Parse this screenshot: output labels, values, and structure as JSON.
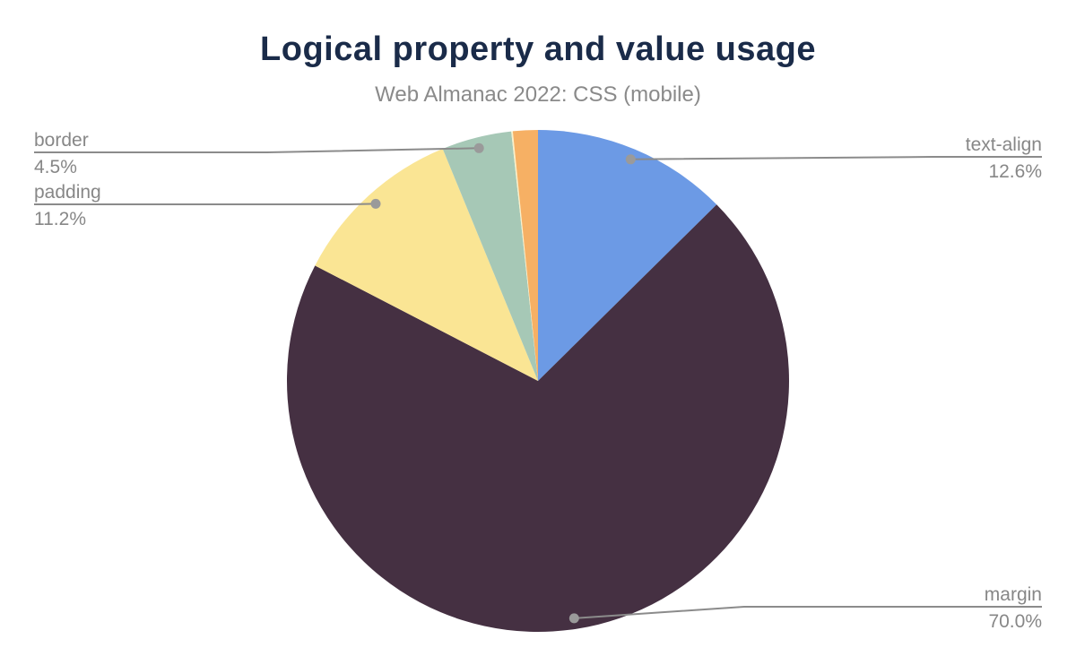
{
  "chart_data": {
    "type": "pie",
    "title": "Logical property and value usage",
    "subtitle": "Web Almanac 2022: CSS (mobile)",
    "unit": "%",
    "legend": "none",
    "callouts": true,
    "start_angle": "12 o'clock, clockwise",
    "slices": [
      {
        "label": "text-align",
        "value": 12.6,
        "color": "#6c9ae5",
        "labeled": true
      },
      {
        "label": "margin",
        "value": 70.0,
        "color": "#453042",
        "labeled": true
      },
      {
        "label": "padding",
        "value": 11.2,
        "color": "#fae594",
        "labeled": true
      },
      {
        "label": "border",
        "value": 4.5,
        "color": "#a6c8b6",
        "labeled": true
      },
      {
        "label": "",
        "value": 0.1,
        "color": "#faf0c8",
        "labeled": false
      },
      {
        "label": "",
        "value": 1.6,
        "color": "#f6b064",
        "labeled": false
      }
    ],
    "callout_values": {
      "text-align": "12.6%",
      "margin": "70.0%",
      "padding": "11.2%",
      "border": "4.5%"
    },
    "style": {
      "background": "#ffffff",
      "title_color": "#1a2b49",
      "subtitle_color": "#8a8a8a",
      "label_color": "#878787",
      "leader_line_color": "#8b8b8b",
      "leader_dot_color": "#9a9a9a"
    }
  }
}
